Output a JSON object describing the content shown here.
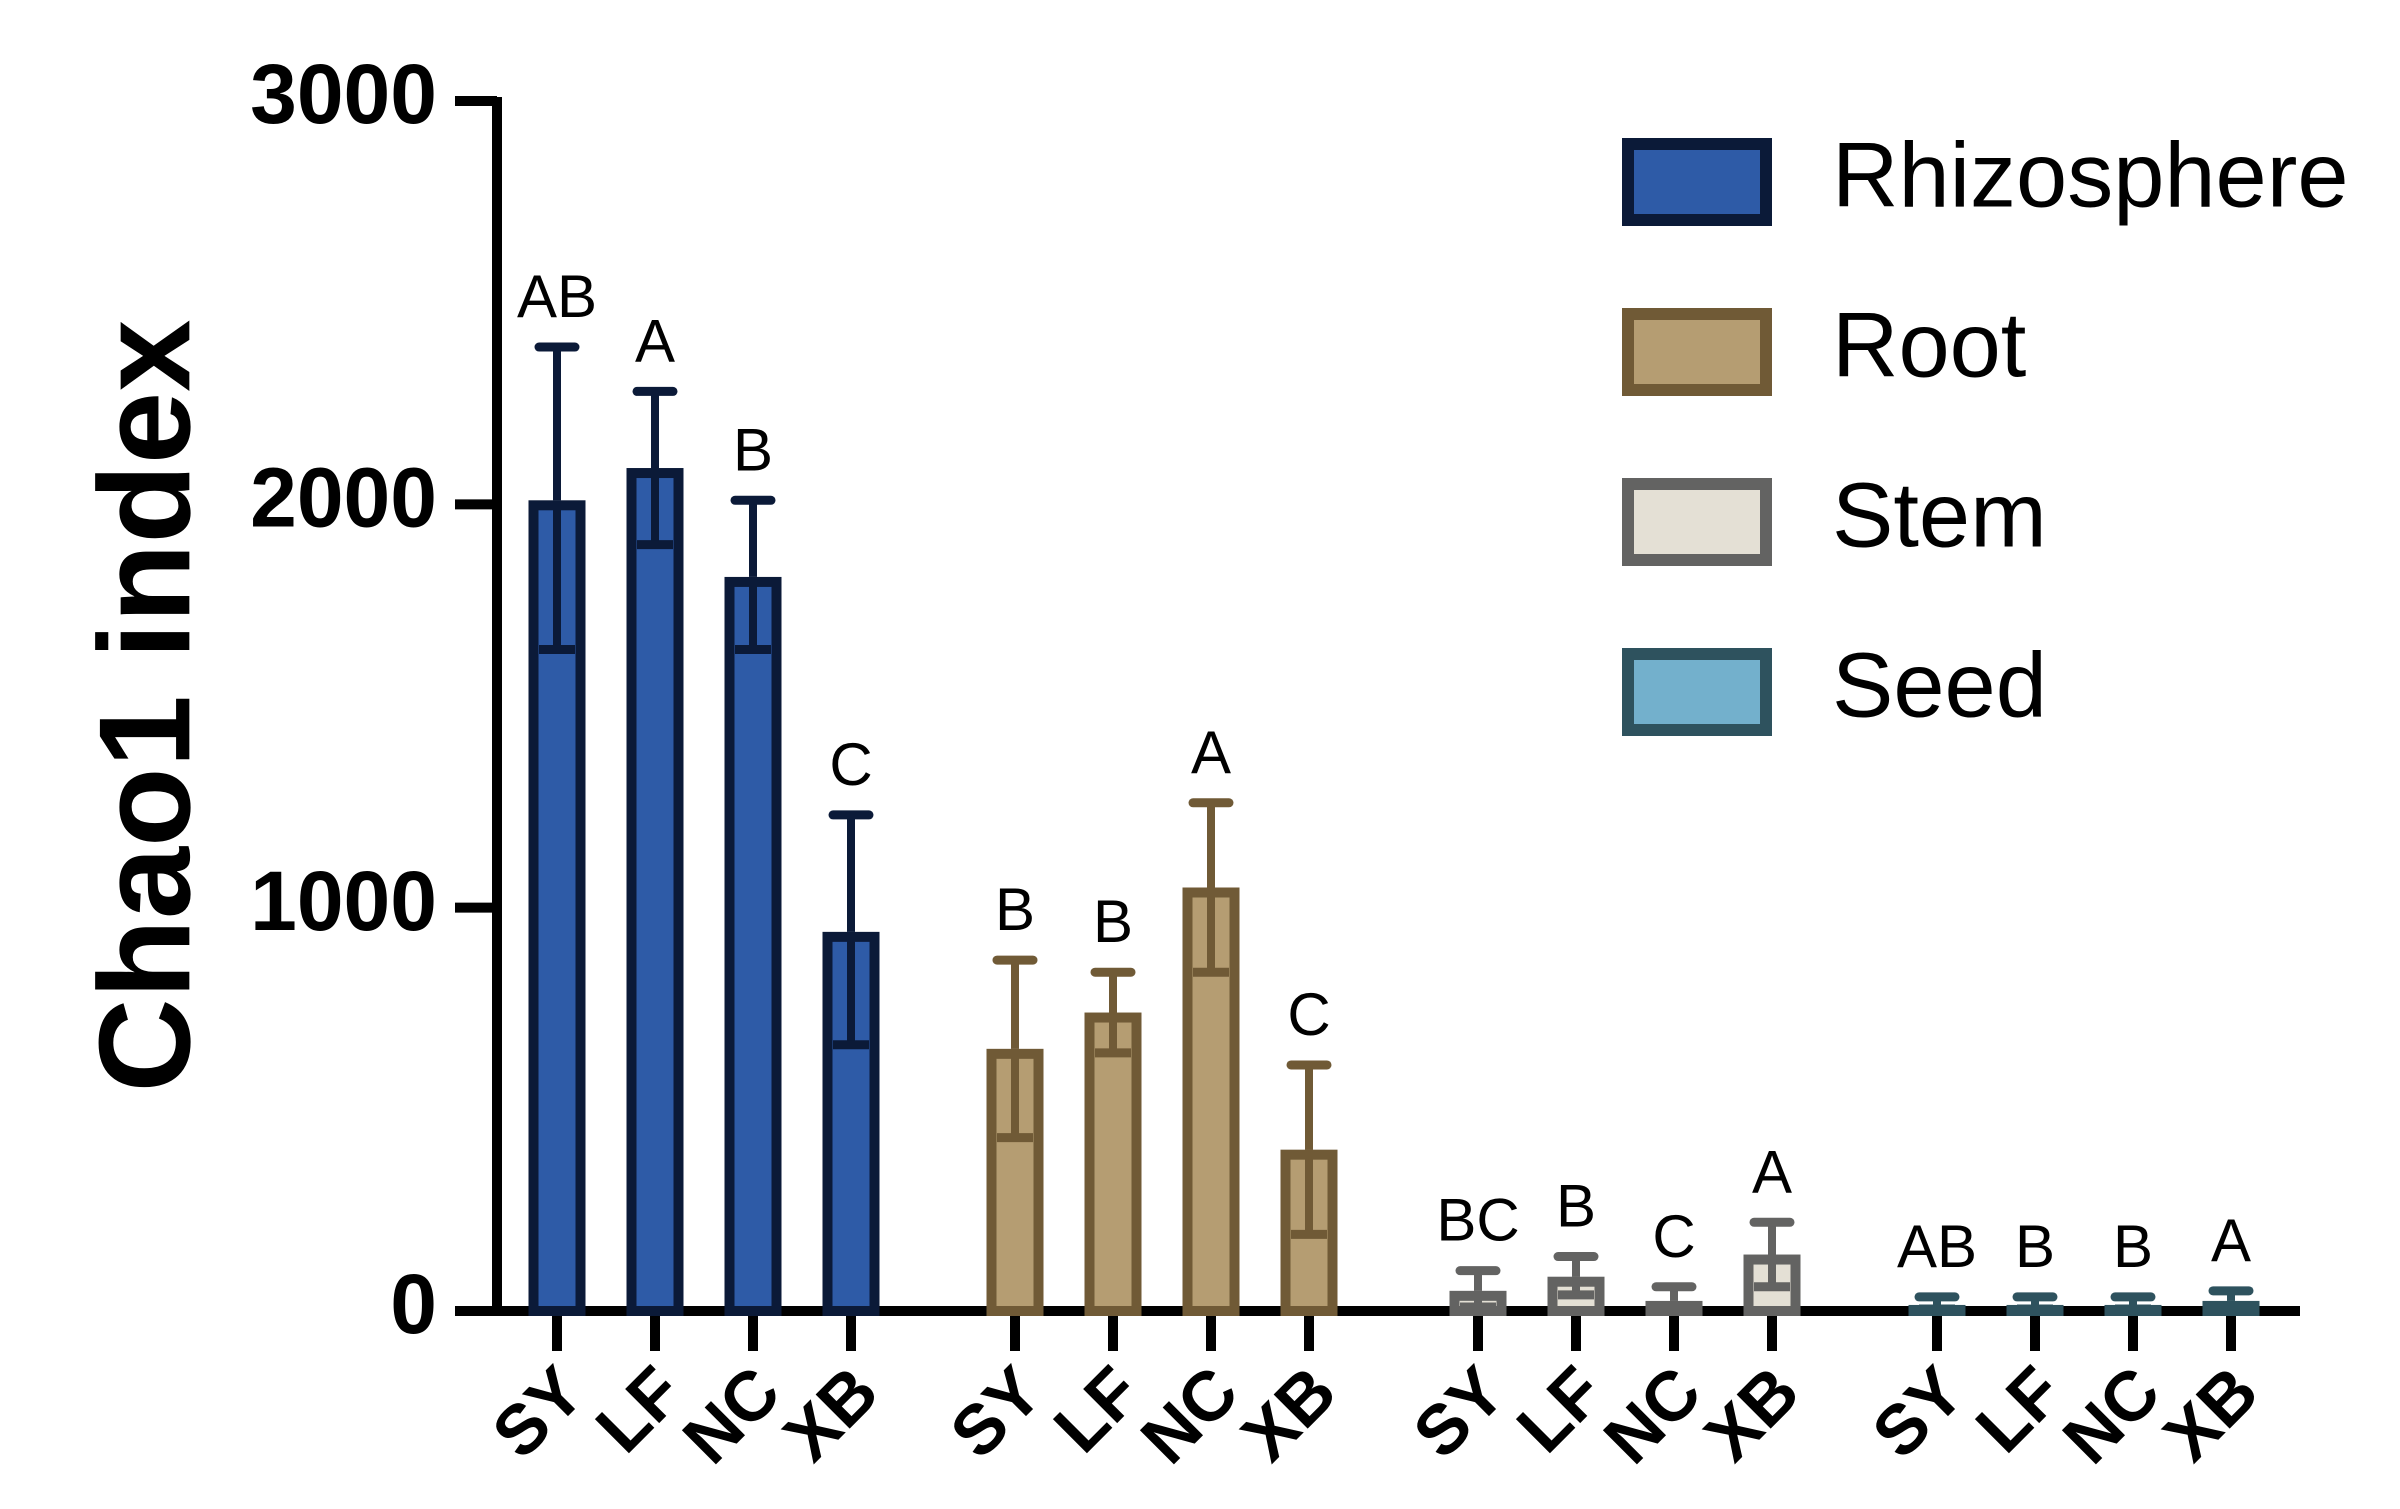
{
  "chart_data": {
    "type": "bar",
    "ylabel": "Chao1 index",
    "xlabel": "",
    "ylim": [
      0,
      3000
    ],
    "yticks": [
      "0",
      "1000",
      "2000",
      "3000"
    ],
    "grid": false,
    "legend_position": "top-right",
    "categories": [
      "SY",
      "LF",
      "NC",
      "XB"
    ],
    "series": [
      {
        "name": "Rhizosphere",
        "fill": "#2E5BA7",
        "stroke": "#0B1A38",
        "values": [
          2010,
          2090,
          1820,
          940
        ],
        "err_high": [
          2390,
          2280,
          2010,
          1230
        ],
        "err_low": [
          1640,
          1900,
          1640,
          660
        ],
        "letters": [
          "AB",
          "A",
          "B",
          "C"
        ]
      },
      {
        "name": "Root",
        "fill": "#B59D72",
        "stroke": "#705A36",
        "values": [
          650,
          740,
          1050,
          400
        ],
        "err_high": [
          870,
          840,
          1260,
          610
        ],
        "err_low": [
          430,
          640,
          840,
          190
        ],
        "letters": [
          "B",
          "B",
          "A",
          "C"
        ]
      },
      {
        "name": "Stem",
        "fill": "#E4E0D5",
        "stroke": "#636362",
        "values": [
          50,
          85,
          25,
          140
        ],
        "err_high": [
          100,
          135,
          60,
          220
        ],
        "err_low": [
          10,
          40,
          5,
          60
        ],
        "letters": [
          "BC",
          "B",
          "C",
          "A"
        ]
      },
      {
        "name": "Seed",
        "fill": "#73B0CC",
        "stroke": "#2E525E",
        "values": [
          15,
          15,
          15,
          25
        ],
        "err_high": [
          35,
          35,
          35,
          50
        ],
        "err_low": [
          5,
          5,
          5,
          10
        ],
        "letters": [
          "AB",
          "B",
          "B",
          "A"
        ]
      }
    ]
  }
}
